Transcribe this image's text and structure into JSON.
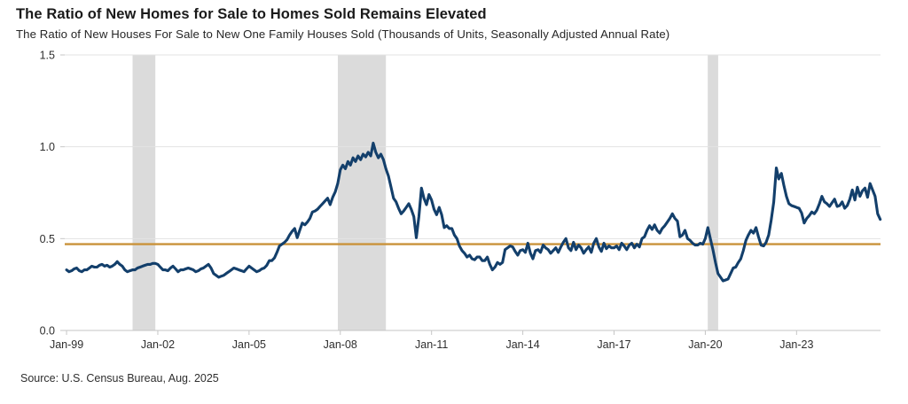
{
  "chart_data": {
    "type": "line",
    "title": "The Ratio of New Homes for Sale to Homes Sold Remains Elevated",
    "subtitle": "The Ratio of New Houses For Sale to New One Family Houses Sold (Thousands of Units, Seasonally Adjusted Annual Rate)",
    "source": "Source: U.S. Census Bureau, Aug. 2025",
    "x_ticks": [
      "Jan-99",
      "Jan-02",
      "Jan-05",
      "Jan-08",
      "Jan-11",
      "Jan-14",
      "Jan-17",
      "Jan-20",
      "Jan-23"
    ],
    "x_tick_values": [
      1999,
      2002,
      2005,
      2008,
      2011,
      2014,
      2017,
      2020,
      2023
    ],
    "y_ticks": [
      "0.0",
      "0.5",
      "1.0",
      "1.5"
    ],
    "y_tick_values": [
      0,
      0.5,
      1.0,
      1.5
    ],
    "xlim": [
      1998.94,
      2025.76
    ],
    "ylim": [
      0,
      1.5
    ],
    "grid": "horizontal",
    "legend": "none",
    "reference_line": {
      "value": 0.47,
      "color": "#C9923A"
    },
    "recession_bands": [
      [
        2001.17,
        2001.92
      ],
      [
        2007.92,
        2009.5
      ],
      [
        2020.08,
        2020.42
      ]
    ],
    "colors": {
      "line": "#133F6B",
      "reference": "#C9923A",
      "band": "#DBDBDB",
      "gridline": "#E3E3E3",
      "axis": "#C6C6C6",
      "tick_text": "#2e2e2e"
    },
    "series": [
      {
        "name": "ratio",
        "color": "#133F6B",
        "x_start": 1999.0,
        "x_step_years": 0.0833333,
        "values": [
          0.33,
          0.32,
          0.325,
          0.335,
          0.34,
          0.325,
          0.32,
          0.33,
          0.33,
          0.34,
          0.35,
          0.345,
          0.345,
          0.355,
          0.36,
          0.35,
          0.355,
          0.345,
          0.35,
          0.36,
          0.375,
          0.36,
          0.35,
          0.33,
          0.32,
          0.325,
          0.33,
          0.33,
          0.34,
          0.345,
          0.35,
          0.355,
          0.36,
          0.36,
          0.365,
          0.365,
          0.36,
          0.345,
          0.33,
          0.33,
          0.325,
          0.34,
          0.35,
          0.335,
          0.32,
          0.33,
          0.33,
          0.335,
          0.34,
          0.335,
          0.33,
          0.32,
          0.325,
          0.335,
          0.34,
          0.35,
          0.36,
          0.34,
          0.31,
          0.3,
          0.29,
          0.295,
          0.3,
          0.31,
          0.32,
          0.33,
          0.34,
          0.335,
          0.33,
          0.325,
          0.32,
          0.335,
          0.35,
          0.34,
          0.33,
          0.32,
          0.325,
          0.335,
          0.34,
          0.355,
          0.38,
          0.38,
          0.395,
          0.425,
          0.46,
          0.47,
          0.48,
          0.495,
          0.52,
          0.54,
          0.555,
          0.505,
          0.545,
          0.585,
          0.575,
          0.59,
          0.61,
          0.645,
          0.65,
          0.66,
          0.675,
          0.69,
          0.705,
          0.72,
          0.685,
          0.725,
          0.755,
          0.8,
          0.875,
          0.9,
          0.88,
          0.92,
          0.9,
          0.94,
          0.92,
          0.95,
          0.93,
          0.96,
          0.945,
          0.97,
          0.95,
          1.02,
          0.97,
          0.94,
          0.96,
          0.93,
          0.88,
          0.84,
          0.78,
          0.72,
          0.7,
          0.665,
          0.635,
          0.65,
          0.67,
          0.69,
          0.66,
          0.62,
          0.505,
          0.62,
          0.775,
          0.72,
          0.685,
          0.74,
          0.71,
          0.66,
          0.63,
          0.67,
          0.63,
          0.56,
          0.57,
          0.555,
          0.555,
          0.52,
          0.5,
          0.46,
          0.435,
          0.42,
          0.4,
          0.41,
          0.39,
          0.385,
          0.4,
          0.4,
          0.38,
          0.38,
          0.4,
          0.36,
          0.33,
          0.345,
          0.37,
          0.36,
          0.37,
          0.44,
          0.45,
          0.46,
          0.455,
          0.43,
          0.41,
          0.435,
          0.44,
          0.425,
          0.475,
          0.42,
          0.39,
          0.435,
          0.44,
          0.425,
          0.465,
          0.45,
          0.44,
          0.42,
          0.435,
          0.45,
          0.425,
          0.455,
          0.48,
          0.5,
          0.45,
          0.435,
          0.48,
          0.44,
          0.465,
          0.45,
          0.42,
          0.44,
          0.455,
          0.425,
          0.475,
          0.5,
          0.455,
          0.43,
          0.475,
          0.445,
          0.46,
          0.45,
          0.45,
          0.46,
          0.44,
          0.475,
          0.46,
          0.44,
          0.465,
          0.475,
          0.45,
          0.47,
          0.455,
          0.5,
          0.51,
          0.545,
          0.57,
          0.55,
          0.575,
          0.545,
          0.53,
          0.555,
          0.57,
          0.59,
          0.61,
          0.635,
          0.61,
          0.595,
          0.51,
          0.52,
          0.545,
          0.5,
          0.49,
          0.475,
          0.465,
          0.465,
          0.475,
          0.47,
          0.5,
          0.56,
          0.5,
          0.44,
          0.37,
          0.31,
          0.29,
          0.27,
          0.275,
          0.28,
          0.31,
          0.34,
          0.345,
          0.37,
          0.39,
          0.435,
          0.49,
          0.52,
          0.545,
          0.53,
          0.56,
          0.51,
          0.465,
          0.46,
          0.48,
          0.52,
          0.6,
          0.7,
          0.885,
          0.825,
          0.855,
          0.79,
          0.73,
          0.69,
          0.68,
          0.675,
          0.67,
          0.665,
          0.64,
          0.585,
          0.61,
          0.625,
          0.645,
          0.635,
          0.655,
          0.69,
          0.73,
          0.7,
          0.69,
          0.675,
          0.695,
          0.715,
          0.675,
          0.68,
          0.7,
          0.665,
          0.68,
          0.715,
          0.765,
          0.71,
          0.78,
          0.73,
          0.76,
          0.775,
          0.725,
          0.8,
          0.765,
          0.73,
          0.635,
          0.605
        ]
      }
    ]
  }
}
